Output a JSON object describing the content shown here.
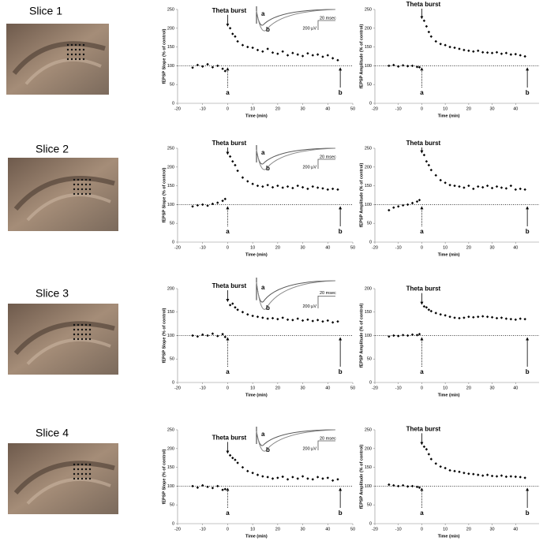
{
  "slices": [
    "Slice 1",
    "Slice 2",
    "Slice 3",
    "Slice 4"
  ],
  "chart_data": [
    {
      "type": "scatter",
      "y_label": "fEPSP Slope (% of control)",
      "x_label": "Time (min)",
      "xlim": [
        -20,
        50
      ],
      "xticks": [
        -20,
        -10,
        0,
        10,
        20,
        30,
        40,
        50
      ],
      "ylim": [
        0,
        250
      ],
      "yticks": [
        0,
        50,
        100,
        150,
        200,
        250
      ],
      "reference_line": 100,
      "color": "#000000",
      "annotations": [
        {
          "text": "Theta burst",
          "x": 0
        },
        {
          "text": "a",
          "x": 0
        },
        {
          "text": "b",
          "x": 45
        }
      ],
      "inset": {
        "trace_labels": [
          "a",
          "b"
        ],
        "amplitude_scale": "200 µV",
        "time_scale": "20 msec"
      },
      "x": [
        -14,
        -12,
        -10,
        -8,
        -6,
        -4,
        -2,
        -1,
        1,
        2,
        3,
        4,
        6,
        8,
        10,
        12,
        14,
        16,
        18,
        20,
        22,
        24,
        26,
        28,
        30,
        32,
        34,
        36,
        38,
        40,
        42,
        44
      ],
      "values": [
        95,
        102,
        98,
        104,
        96,
        100,
        92,
        86,
        200,
        185,
        178,
        165,
        155,
        150,
        148,
        142,
        138,
        145,
        135,
        132,
        138,
        128,
        134,
        130,
        126,
        133,
        128,
        130,
        124,
        128,
        120,
        115
      ]
    },
    {
      "type": "scatter",
      "y_label": "fEPSP Amplitude (% of control)",
      "x_label": "Time (min)",
      "xlim": [
        -20,
        50
      ],
      "xticks": [
        -20,
        -10,
        0,
        10,
        20,
        30,
        40
      ],
      "ylim": [
        0,
        250
      ],
      "yticks": [
        0,
        50,
        100,
        150,
        200,
        250
      ],
      "reference_line": 100,
      "color": "#000000",
      "annotations": [
        {
          "text": "Theta burst",
          "x": 0
        },
        {
          "text": "a",
          "x": 0
        },
        {
          "text": "b",
          "x": 45
        }
      ],
      "x": [
        -14,
        -12,
        -10,
        -8,
        -6,
        -4,
        -2,
        -1,
        1,
        2,
        3,
        4,
        6,
        8,
        10,
        12,
        14,
        16,
        18,
        20,
        22,
        24,
        26,
        28,
        30,
        32,
        34,
        36,
        38,
        40,
        42,
        44
      ],
      "values": [
        100,
        102,
        98,
        101,
        99,
        100,
        97,
        96,
        220,
        205,
        190,
        178,
        165,
        158,
        155,
        150,
        148,
        145,
        142,
        140,
        138,
        140,
        136,
        135,
        134,
        136,
        132,
        134,
        130,
        131,
        128,
        125
      ]
    },
    {
      "type": "scatter",
      "y_label": "fEPSP Slope (% of control)",
      "x_label": "Time (min)",
      "xlim": [
        -20,
        50
      ],
      "xticks": [
        -20,
        -10,
        0,
        10,
        20,
        30,
        40,
        50
      ],
      "ylim": [
        0,
        250
      ],
      "yticks": [
        0,
        50,
        100,
        150,
        200,
        250
      ],
      "reference_line": 100,
      "color": "#000000",
      "annotations": [
        {
          "text": "Theta burst",
          "x": 0
        },
        {
          "text": "a",
          "x": 0
        },
        {
          "text": "b",
          "x": 45
        }
      ],
      "inset": {
        "trace_labels": [
          "a",
          "b"
        ],
        "amplitude_scale": "200 µV",
        "time_scale": "20 msec"
      },
      "x": [
        -14,
        -12,
        -10,
        -8,
        -6,
        -4,
        -2,
        -1,
        1,
        2,
        3,
        4,
        6,
        8,
        10,
        12,
        14,
        16,
        18,
        20,
        22,
        24,
        26,
        28,
        30,
        32,
        34,
        36,
        38,
        40,
        42,
        44
      ],
      "values": [
        95,
        98,
        100,
        97,
        102,
        105,
        110,
        115,
        228,
        215,
        205,
        190,
        172,
        162,
        155,
        150,
        148,
        152,
        146,
        150,
        145,
        148,
        144,
        150,
        146,
        142,
        148,
        145,
        143,
        140,
        142,
        140
      ]
    },
    {
      "type": "scatter",
      "y_label": "fEPSP Amplitude (% of control)",
      "x_label": "Time (min)",
      "xlim": [
        -20,
        50
      ],
      "xticks": [
        -20,
        -10,
        0,
        10,
        20,
        30,
        40
      ],
      "ylim": [
        0,
        250
      ],
      "yticks": [
        0,
        50,
        100,
        150,
        200,
        250
      ],
      "reference_line": 100,
      "color": "#000000",
      "annotations": [
        {
          "text": "Theta burst",
          "x": 0
        },
        {
          "text": "a",
          "x": 0
        },
        {
          "text": "b",
          "x": 45
        }
      ],
      "x": [
        -14,
        -12,
        -10,
        -8,
        -6,
        -4,
        -2,
        -1,
        1,
        2,
        3,
        4,
        6,
        8,
        10,
        12,
        14,
        16,
        18,
        20,
        22,
        24,
        26,
        28,
        30,
        32,
        34,
        36,
        38,
        40,
        42,
        44
      ],
      "values": [
        85,
        92,
        95,
        98,
        100,
        104,
        108,
        112,
        232,
        215,
        205,
        192,
        178,
        165,
        158,
        152,
        150,
        148,
        145,
        150,
        142,
        148,
        146,
        150,
        144,
        148,
        145,
        143,
        150,
        140,
        142,
        140
      ]
    },
    {
      "type": "scatter",
      "y_label": "fEPSP Slope (% of control)",
      "x_label": "Time (min)",
      "xlim": [
        -20,
        50
      ],
      "xticks": [
        -20,
        -10,
        0,
        10,
        20,
        30,
        40,
        50
      ],
      "ylim": [
        0,
        200
      ],
      "yticks": [
        0,
        50,
        100,
        150,
        200
      ],
      "reference_line": 100,
      "color": "#000000",
      "annotations": [
        {
          "text": "Theta burst",
          "x": 0
        },
        {
          "text": "a",
          "x": 0
        },
        {
          "text": "b",
          "x": 45
        }
      ],
      "inset": {
        "trace_labels": [
          "a",
          "b"
        ],
        "amplitude_scale": "200 µV",
        "time_scale": "20 msec"
      },
      "x": [
        -14,
        -12,
        -10,
        -8,
        -6,
        -4,
        -2,
        -1,
        1,
        2,
        3,
        4,
        6,
        8,
        10,
        12,
        14,
        16,
        18,
        20,
        22,
        24,
        26,
        28,
        30,
        32,
        34,
        36,
        38,
        40,
        42,
        44
      ],
      "values": [
        100,
        98,
        102,
        100,
        104,
        99,
        103,
        97,
        165,
        168,
        160,
        155,
        150,
        145,
        142,
        140,
        138,
        136,
        137,
        135,
        138,
        134,
        133,
        136,
        132,
        134,
        131,
        133,
        130,
        132,
        128,
        130
      ]
    },
    {
      "type": "scatter",
      "y_label": "fEPSP Amplitude (% of control)",
      "x_label": "Time (min)",
      "xlim": [
        -20,
        50
      ],
      "xticks": [
        -20,
        -10,
        0,
        10,
        20,
        30,
        40
      ],
      "ylim": [
        0,
        200
      ],
      "yticks": [
        0,
        50,
        100,
        150,
        200
      ],
      "reference_line": 100,
      "color": "#000000",
      "annotations": [
        {
          "text": "Theta burst",
          "x": 0
        },
        {
          "text": "a",
          "x": 0
        },
        {
          "text": "b",
          "x": 45
        }
      ],
      "x": [
        -14,
        -12,
        -10,
        -8,
        -6,
        -4,
        -2,
        -1,
        1,
        2,
        3,
        4,
        6,
        8,
        10,
        12,
        14,
        16,
        18,
        20,
        22,
        24,
        26,
        28,
        30,
        32,
        34,
        36,
        38,
        40,
        42,
        44
      ],
      "values": [
        98,
        100,
        99,
        101,
        100,
        102,
        101,
        103,
        162,
        160,
        155,
        152,
        148,
        145,
        143,
        140,
        138,
        137,
        138,
        140,
        139,
        140,
        141,
        140,
        139,
        137,
        138,
        136,
        135,
        134,
        136,
        135
      ]
    },
    {
      "type": "scatter",
      "y_label": "fEPSP Slope (% of control)",
      "x_label": "Time (min)",
      "xlim": [
        -20,
        50
      ],
      "xticks": [
        -20,
        -10,
        0,
        10,
        20,
        30,
        40,
        50
      ],
      "ylim": [
        0,
        250
      ],
      "yticks": [
        0,
        50,
        100,
        150,
        200,
        250
      ],
      "reference_line": 100,
      "color": "#000000",
      "annotations": [
        {
          "text": "Theta burst",
          "x": 0
        },
        {
          "text": "a",
          "x": 0
        },
        {
          "text": "b",
          "x": 45
        }
      ],
      "inset": {
        "trace_labels": [
          "a",
          "b"
        ],
        "amplitude_scale": "200 µV",
        "time_scale": "20 msec"
      },
      "x": [
        -14,
        -12,
        -10,
        -8,
        -6,
        -4,
        -2,
        -1,
        1,
        2,
        3,
        4,
        6,
        8,
        10,
        12,
        14,
        16,
        18,
        20,
        22,
        24,
        26,
        28,
        30,
        32,
        34,
        36,
        38,
        40,
        42,
        44
      ],
      "values": [
        100,
        96,
        102,
        98,
        95,
        100,
        90,
        92,
        182,
        175,
        170,
        162,
        150,
        140,
        135,
        130,
        126,
        124,
        120,
        122,
        125,
        118,
        124,
        120,
        126,
        120,
        118,
        124,
        120,
        122,
        115,
        118
      ]
    },
    {
      "type": "scatter",
      "y_label": "fEPSP Amplitude (% of control)",
      "x_label": "Time (min)",
      "xlim": [
        -20,
        50
      ],
      "xticks": [
        -20,
        -10,
        0,
        10,
        20,
        30,
        40
      ],
      "ylim": [
        0,
        250
      ],
      "yticks": [
        0,
        50,
        100,
        150,
        200,
        250
      ],
      "reference_line": 100,
      "color": "#000000",
      "annotations": [
        {
          "text": "Theta burst",
          "x": 0
        },
        {
          "text": "a",
          "x": 0
        },
        {
          "text": "b",
          "x": 45
        }
      ],
      "x": [
        -14,
        -12,
        -10,
        -8,
        -6,
        -4,
        -2,
        -1,
        1,
        2,
        3,
        4,
        6,
        8,
        10,
        12,
        14,
        16,
        18,
        20,
        22,
        24,
        26,
        28,
        30,
        32,
        34,
        36,
        38,
        40,
        42,
        44
      ],
      "values": [
        104,
        102,
        100,
        102,
        99,
        100,
        98,
        96,
        205,
        198,
        185,
        172,
        160,
        152,
        148,
        142,
        140,
        138,
        135,
        133,
        132,
        130,
        128,
        130,
        127,
        126,
        128,
        125,
        126,
        125,
        124,
        122
      ]
    }
  ]
}
